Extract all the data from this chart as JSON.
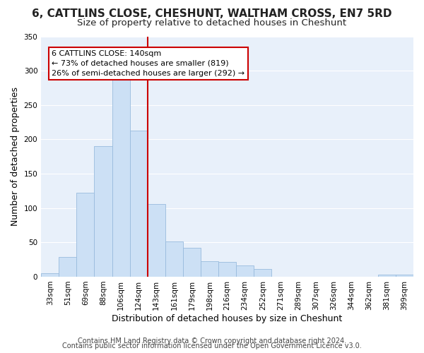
{
  "title": "6, CATTLINS CLOSE, CHESHUNT, WALTHAM CROSS, EN7 5RD",
  "subtitle": "Size of property relative to detached houses in Cheshunt",
  "xlabel": "Distribution of detached houses by size in Cheshunt",
  "ylabel": "Number of detached properties",
  "bar_labels": [
    "33sqm",
    "51sqm",
    "69sqm",
    "88sqm",
    "106sqm",
    "124sqm",
    "143sqm",
    "161sqm",
    "179sqm",
    "198sqm",
    "216sqm",
    "234sqm",
    "252sqm",
    "271sqm",
    "289sqm",
    "307sqm",
    "326sqm",
    "344sqm",
    "362sqm",
    "381sqm",
    "399sqm"
  ],
  "bar_values": [
    5,
    29,
    122,
    190,
    293,
    213,
    106,
    51,
    42,
    23,
    22,
    16,
    11,
    0,
    0,
    0,
    0,
    0,
    0,
    3,
    3
  ],
  "bar_color": "#cce0f5",
  "bar_edge_color": "#99bbdd",
  "vline_color": "#cc0000",
  "ylim": [
    0,
    350
  ],
  "yticks": [
    0,
    50,
    100,
    150,
    200,
    250,
    300,
    350
  ],
  "annotation_title": "6 CATTLINS CLOSE: 140sqm",
  "annotation_line1": "← 73% of detached houses are smaller (819)",
  "annotation_line2": "26% of semi-detached houses are larger (292) →",
  "footer1": "Contains HM Land Registry data © Crown copyright and database right 2024.",
  "footer2": "Contains public sector information licensed under the Open Government Licence v3.0.",
  "plot_bg_color": "#e8f0fa",
  "fig_bg_color": "#ffffff",
  "grid_color": "#ffffff",
  "title_fontsize": 11,
  "subtitle_fontsize": 9.5,
  "axis_label_fontsize": 9,
  "tick_fontsize": 7.5,
  "footer_fontsize": 7,
  "annot_fontsize": 8,
  "vline_index": 6
}
